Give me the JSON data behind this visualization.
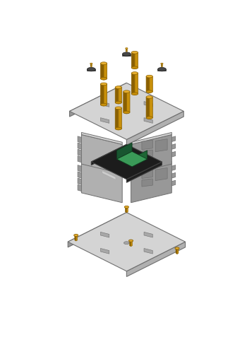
{
  "bg_color": "#ffffff",
  "plate_top": "#d4d4d4",
  "plate_right": "#b0b0b0",
  "plate_left": "#989898",
  "plate_edge": "#707070",
  "gold_body": "#c8900a",
  "gold_dark": "#8a6000",
  "gold_top": "#e8b030",
  "pcb_top": "#1c1c1c",
  "pcb_side": "#111111",
  "green_top": "#3a9a58",
  "green_right": "#1e6635",
  "green_left": "#185530",
  "green_edge": "#0f3a1e",
  "rubber_top": "#484848",
  "rubber_side": "#333333",
  "rubber_edge": "#1a1a1a",
  "white_conn": "#cccccc",
  "figsize": [
    3.5,
    4.84
  ],
  "dpi": 100
}
